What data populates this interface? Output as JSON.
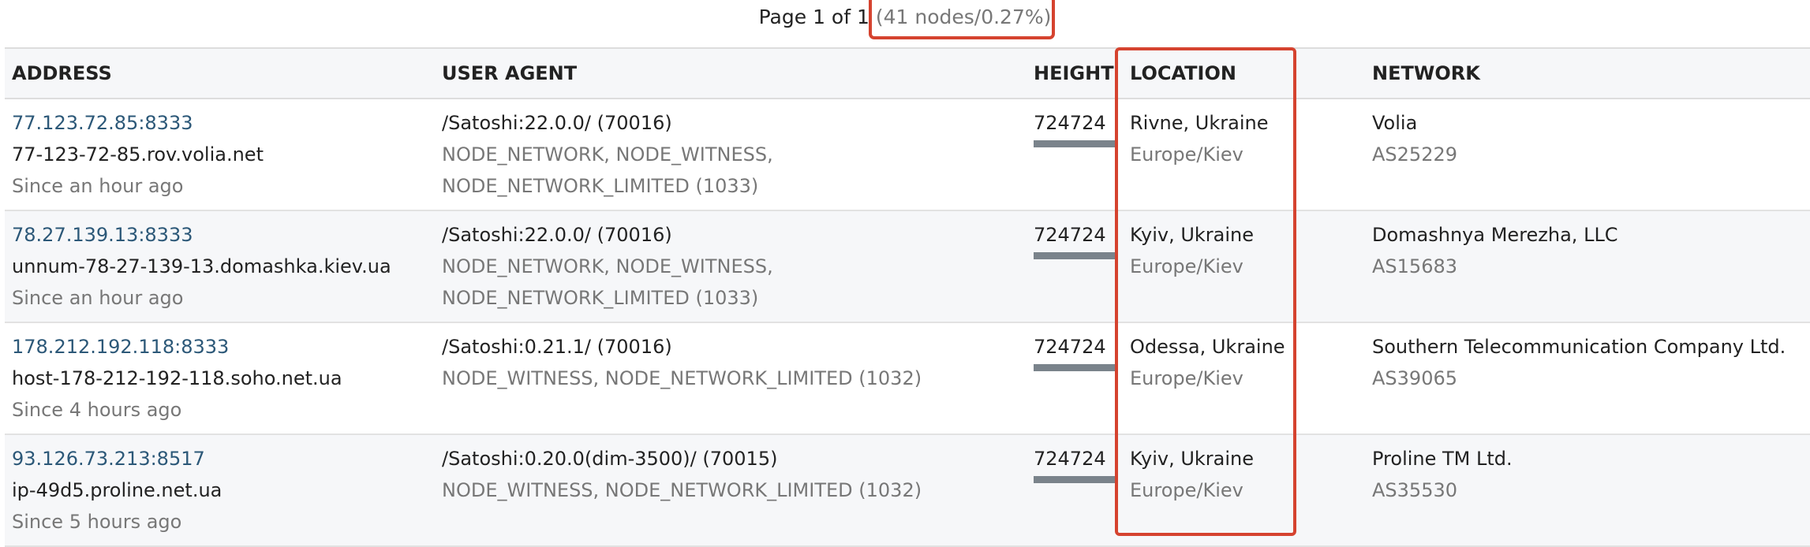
{
  "pager": {
    "text": "Page 1 of 1",
    "summary": "(41 nodes/0.27%)"
  },
  "columns": {
    "address": "ADDRESS",
    "user_agent": "USER AGENT",
    "height": "HEIGHT",
    "location": "LOCATION",
    "network": "NETWORK"
  },
  "highlight_color": "#d5432f",
  "rows": [
    {
      "address": "77.123.72.85:8333",
      "host": "77-123-72-85.rov.volia.net",
      "since": "Since an hour ago",
      "agent": "/Satoshi:22.0.0/ (70016)",
      "services": "NODE_NETWORK, NODE_WITNESS, NODE_NETWORK_LIMITED (1033)",
      "height": "724724",
      "city": "Rivne, Ukraine",
      "tz": "Europe/Kiev",
      "network": "Volia",
      "asn": "AS25229"
    },
    {
      "address": "78.27.139.13:8333",
      "host": "unnum-78-27-139-13.domashka.kiev.ua",
      "since": "Since an hour ago",
      "agent": "/Satoshi:22.0.0/ (70016)",
      "services": "NODE_NETWORK, NODE_WITNESS, NODE_NETWORK_LIMITED (1033)",
      "height": "724724",
      "city": "Kyiv, Ukraine",
      "tz": "Europe/Kiev",
      "network": "Domashnya Merezha, LLC",
      "asn": "AS15683"
    },
    {
      "address": "178.212.192.118:8333",
      "host": "host-178-212-192-118.soho.net.ua",
      "since": "Since 4 hours ago",
      "agent": "/Satoshi:0.21.1/ (70016)",
      "services": "NODE_WITNESS, NODE_NETWORK_LIMITED (1032)",
      "height": "724724",
      "city": "Odessa, Ukraine",
      "tz": "Europe/Kiev",
      "network": "Southern Telecommunication Company Ltd.",
      "asn": "AS39065"
    },
    {
      "address": "93.126.73.213:8517",
      "host": "ip-49d5.proline.net.ua",
      "since": "Since 5 hours ago",
      "agent": "/Satoshi:0.20.0(dim-3500)/ (70015)",
      "services": "NODE_WITNESS, NODE_NETWORK_LIMITED (1032)",
      "height": "724724",
      "city": "Kyiv, Ukraine",
      "tz": "Europe/Kiev",
      "network": "Proline TM Ltd.",
      "asn": "AS35530"
    }
  ]
}
